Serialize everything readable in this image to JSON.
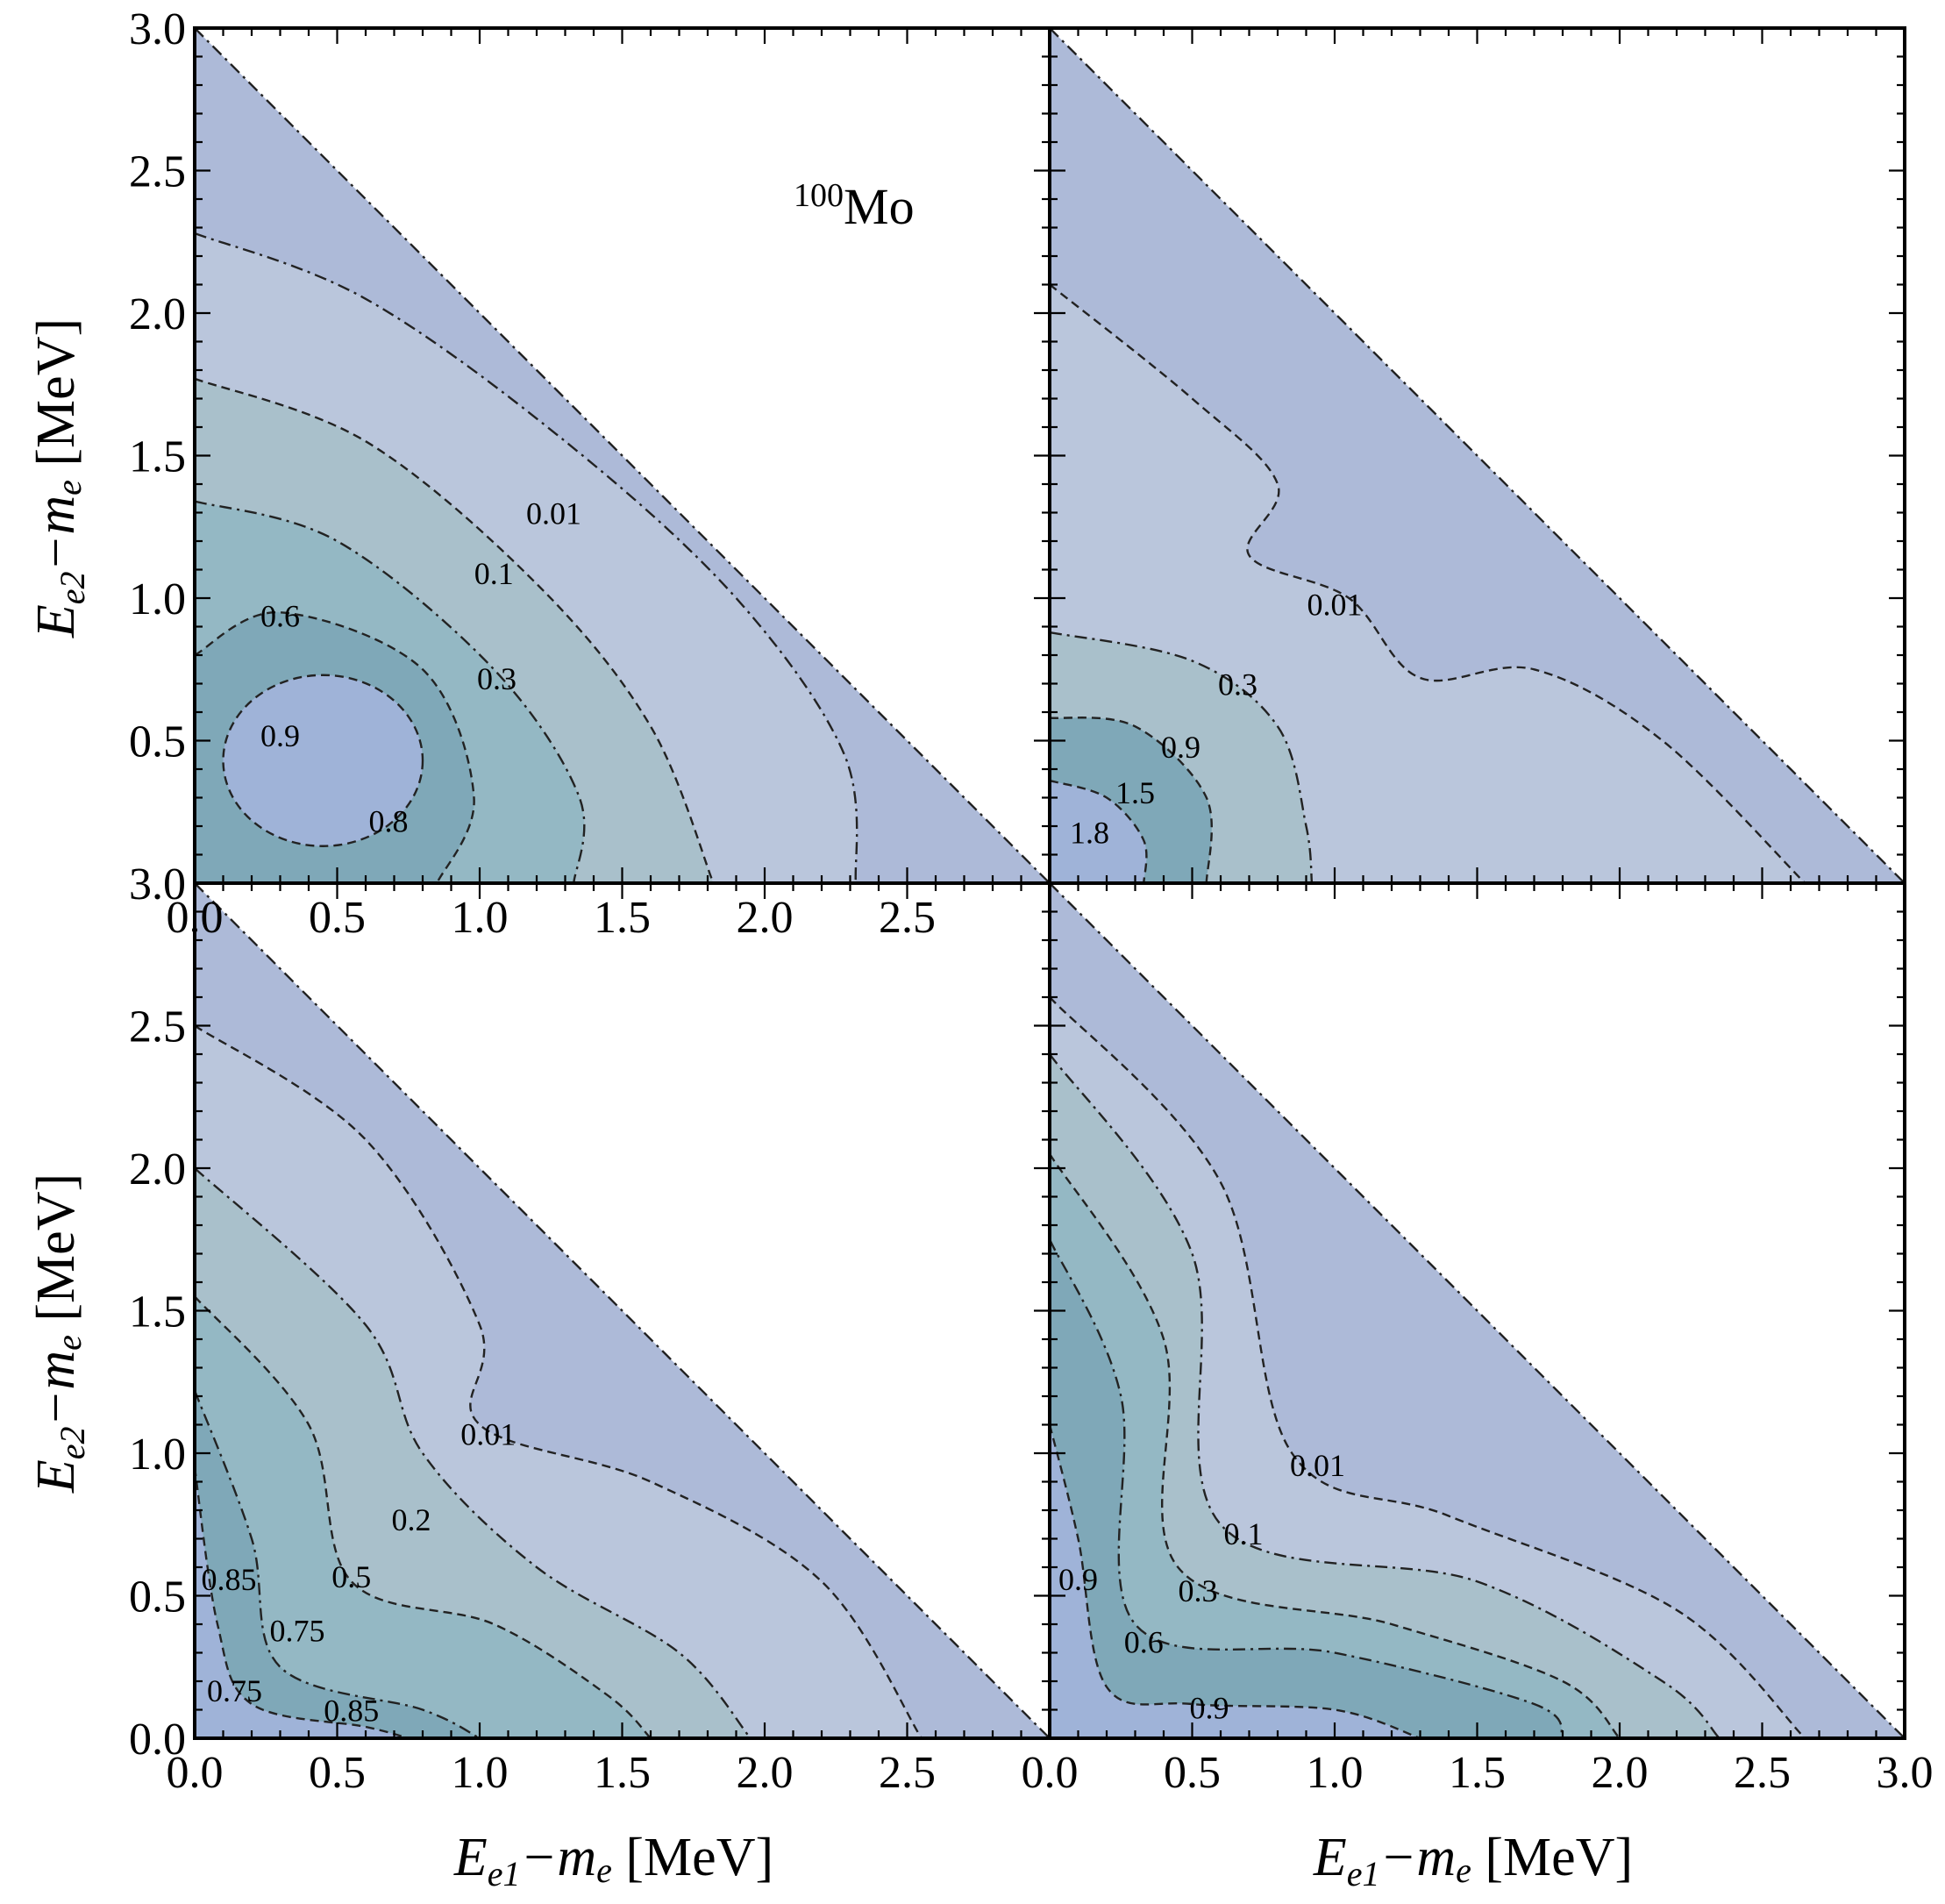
{
  "figure": {
    "isotope_mass": "100",
    "isotope_symbol": "Mo",
    "x_axis_title": {
      "base": "E",
      "sub": "e1",
      "rest": "−m",
      "rest_sub": "e",
      "unit": " [MeV]"
    },
    "y_axis_title": {
      "base": "E",
      "sub": "e2",
      "rest": "−m",
      "rest_sub": "e",
      "unit": " [MeV]"
    }
  },
  "colors": {
    "level_0": "#adbad8",
    "level_1": "#bac6dc",
    "level_2": "#a9c0cb",
    "level_3": "#94b8c4",
    "level_4": "#7fa8b8",
    "level_5": "#9fb3d8",
    "line": "#222222"
  },
  "chart_data": [
    {
      "type": "contour",
      "panel": "top-left",
      "xlim": [
        0,
        3.0
      ],
      "ylim": [
        0,
        3.0
      ],
      "x_ticks": [
        "0.0",
        "0.5",
        "1.0",
        "1.5",
        "2.0",
        "2.5"
      ],
      "y_ticks": [
        "0.5",
        "1.0",
        "1.5",
        "2.0",
        "2.5",
        "3.0"
      ],
      "levels": [
        {
          "value": 0.01,
          "label": "0.01",
          "label_at": [
            1.26,
            1.26
          ]
        },
        {
          "value": 0.1,
          "label": "0.1",
          "label_at": [
            1.05,
            1.05
          ]
        },
        {
          "value": 0.3,
          "label": "0.3",
          "label_at": [
            1.06,
            0.68
          ]
        },
        {
          "value": 0.6,
          "label": "0.6",
          "label_at": [
            0.3,
            0.9
          ]
        },
        {
          "value": 0.8,
          "label": "0.8",
          "label_at": [
            0.68,
            0.18
          ]
        },
        {
          "value": 0.9,
          "label": "0.9",
          "label_at": [
            0.3,
            0.48
          ]
        }
      ],
      "max_region": [
        0.45,
        0.4
      ]
    },
    {
      "type": "contour",
      "panel": "top-right",
      "xlim": [
        0,
        3.0
      ],
      "ylim": [
        0,
        3.0
      ],
      "x_ticks": [],
      "y_ticks": [],
      "levels": [
        {
          "value": 0.01,
          "label": "0.01",
          "label_at": [
            1.0,
            0.94
          ]
        },
        {
          "value": 0.3,
          "label": "0.3",
          "label_at": [
            0.66,
            0.66
          ]
        },
        {
          "value": 0.9,
          "label": "0.9",
          "label_at": [
            0.46,
            0.44
          ]
        },
        {
          "value": 1.5,
          "label": "1.5",
          "label_at": [
            0.3,
            0.28
          ]
        },
        {
          "value": 1.8,
          "label": "1.8",
          "label_at": [
            0.14,
            0.14
          ]
        }
      ]
    },
    {
      "type": "contour",
      "panel": "bottom-left",
      "xlim": [
        0,
        3.0
      ],
      "ylim": [
        0,
        3.0
      ],
      "x_ticks": [
        "0.0",
        "0.5",
        "1.0",
        "1.5",
        "2.0",
        "2.5"
      ],
      "y_ticks": [
        "0.0",
        "0.5",
        "1.0",
        "1.5",
        "2.0",
        "2.5",
        "3.0"
      ],
      "levels": [
        {
          "value": 0.01,
          "label": "0.01",
          "label_at": [
            1.03,
            1.03
          ]
        },
        {
          "value": 0.2,
          "label": "0.2",
          "label_at": [
            0.76,
            0.73
          ]
        },
        {
          "value": 0.5,
          "label": "0.5",
          "label_at": [
            0.55,
            0.53
          ]
        },
        {
          "value": 0.85,
          "label": "0.85",
          "label_at": [
            0.12,
            0.52
          ]
        },
        {
          "value": 0.75,
          "label": "0.75",
          "label_at": [
            0.36,
            0.34
          ]
        },
        {
          "value": 0.75,
          "label": "0.75",
          "label_at": [
            0.14,
            0.13
          ]
        },
        {
          "value": 0.85,
          "label": "0.85",
          "label_at": [
            0.55,
            0.06
          ]
        }
      ]
    },
    {
      "type": "contour",
      "panel": "bottom-right",
      "xlim": [
        0,
        3.0
      ],
      "ylim": [
        0,
        3.0
      ],
      "x_ticks": [
        "0.0",
        "0.5",
        "1.0",
        "1.5",
        "2.0",
        "2.5",
        "3.0"
      ],
      "y_ticks": [],
      "levels": [
        {
          "value": 0.01,
          "label": "0.01",
          "label_at": [
            0.94,
            0.92
          ]
        },
        {
          "value": 0.1,
          "label": "0.1",
          "label_at": [
            0.68,
            0.68
          ]
        },
        {
          "value": 0.3,
          "label": "0.3",
          "label_at": [
            0.52,
            0.48
          ]
        },
        {
          "value": 0.6,
          "label": "0.6",
          "label_at": [
            0.33,
            0.3
          ]
        },
        {
          "value": 0.9,
          "label": "0.9",
          "label_at": [
            0.1,
            0.52
          ]
        },
        {
          "value": 0.9,
          "label": "0.9",
          "label_at": [
            0.56,
            0.07
          ]
        }
      ]
    }
  ]
}
